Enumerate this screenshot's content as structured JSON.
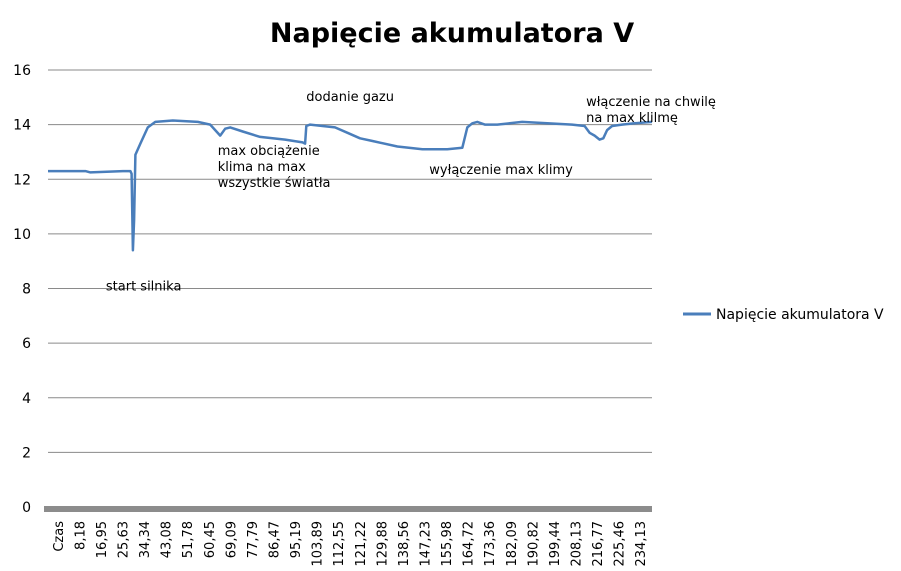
{
  "chart_data": {
    "type": "line",
    "title": "Napięcie akumulatora V",
    "xlabel": "",
    "ylabel": "",
    "ylim": [
      0,
      16
    ],
    "yticks": [
      0,
      2,
      4,
      6,
      8,
      10,
      12,
      14,
      16
    ],
    "grid": "horizontal",
    "legend_position": "right",
    "xlim": [
      0,
      242
    ],
    "x_tick_labels": [
      "Czas",
      "8,18",
      "16,95",
      "25,63",
      "34,34",
      "43,08",
      "51,78",
      "60,45",
      "69,09",
      "77,79",
      "86,47",
      "95,19",
      "103,89",
      "112,55",
      "121,22",
      "129,88",
      "138,56",
      "147,23",
      "155,98",
      "164,72",
      "173,36",
      "182,09",
      "190,82",
      "199,44",
      "208,13",
      "216,77",
      "225,46",
      "234,13"
    ],
    "series": [
      {
        "name": "Napięcie akumulatora V",
        "color": "#4a7ebb",
        "x": [
          0,
          15,
          17,
          30,
          33,
          33.5,
          34,
          34.5,
          35,
          37,
          40,
          43,
          50,
          60,
          65,
          67,
          69,
          71,
          73,
          78,
          85,
          95,
          102,
          103,
          103.5,
          105,
          110,
          115,
          120,
          125,
          130,
          140,
          150,
          160,
          166,
          168,
          170,
          172,
          175,
          180,
          185,
          190,
          200,
          210,
          215,
          217,
          219,
          221,
          222.5,
          224,
          226,
          230,
          235,
          242
        ],
        "y": [
          12.3,
          12.3,
          12.25,
          12.3,
          12.3,
          12.2,
          9.4,
          10.5,
          12.9,
          13.3,
          13.9,
          14.1,
          14.15,
          14.1,
          14.0,
          13.8,
          13.6,
          13.85,
          13.9,
          13.75,
          13.55,
          13.45,
          13.35,
          13.3,
          13.95,
          14.0,
          13.95,
          13.9,
          13.7,
          13.5,
          13.4,
          13.2,
          13.1,
          13.1,
          13.15,
          13.9,
          14.05,
          14.1,
          14.0,
          14.0,
          14.05,
          14.1,
          14.05,
          14.0,
          13.95,
          13.7,
          13.6,
          13.45,
          13.5,
          13.8,
          13.95,
          14.0,
          14.05,
          14.1
        ]
      }
    ],
    "annotations": [
      {
        "id": "start",
        "text": [
          "start silnika"
        ],
        "x": 34,
        "y": 9.4
      },
      {
        "id": "maxload",
        "text": [
          "max obciążenie",
          "klima na max",
          "wszystkie światła"
        ],
        "x": 66,
        "y": 13.7
      },
      {
        "id": "gas",
        "text": [
          "dodanie gazu"
        ],
        "x": 103.5,
        "y": 13.95
      },
      {
        "id": "acoff",
        "text": [
          "wyłączenie max klimy"
        ],
        "x": 168,
        "y": 13.1
      },
      {
        "id": "acon",
        "text": [
          "włączenie na chwilę",
          "na max klilmę"
        ],
        "x": 222,
        "y": 13.5
      }
    ]
  }
}
